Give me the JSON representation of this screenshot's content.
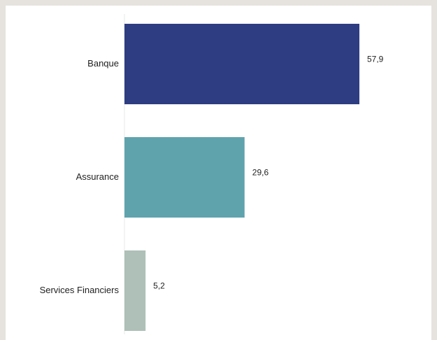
{
  "chart_data": {
    "type": "bar",
    "orientation": "horizontal",
    "categories": [
      "Banque",
      "Assurance",
      "Services Financiers"
    ],
    "values": [
      57.9,
      29.6,
      5.2
    ],
    "value_labels": [
      "57,9",
      "29,6",
      "5,2"
    ],
    "colors": [
      "#2e3d82",
      "#5fa3ad",
      "#aec0b8"
    ],
    "axis_color": "#e8e8e8",
    "title": "",
    "xlabel": "",
    "ylabel": "",
    "xlim": [
      0,
      57.9
    ],
    "grid": false,
    "legend": "none"
  }
}
